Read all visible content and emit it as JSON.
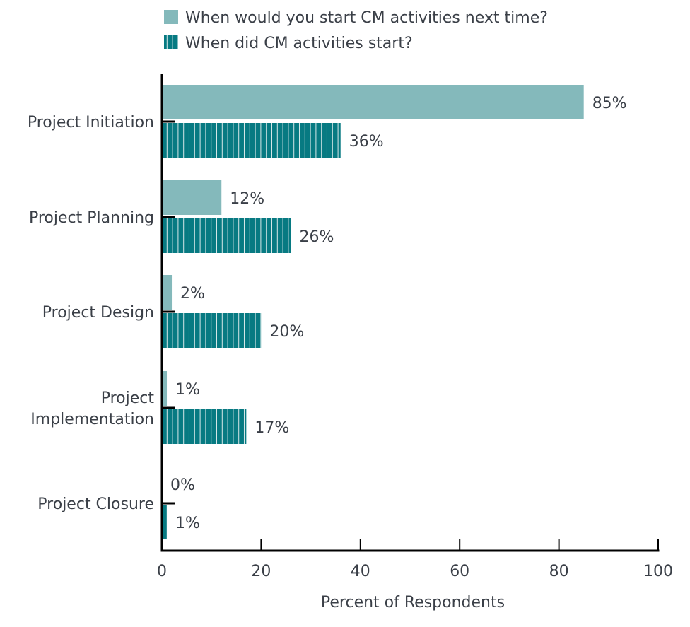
{
  "chart_data": {
    "type": "bar",
    "orientation": "horizontal",
    "categories": [
      "Project Initiation",
      "Project Planning",
      "Project Design",
      "Project Implementation",
      "Project Closure"
    ],
    "series": [
      {
        "name": "When would you start CM activities next time?",
        "values": [
          85,
          12,
          2,
          1,
          0
        ],
        "color": "#84b9bb",
        "pattern": "solid"
      },
      {
        "name": "When did CM activities start?",
        "values": [
          36,
          26,
          20,
          17,
          1
        ],
        "color": "#077a82",
        "pattern": "vertical-stripes"
      }
    ],
    "value_labels": [
      [
        "85%",
        "12%",
        "2%",
        "1%",
        "0%"
      ],
      [
        "36%",
        "26%",
        "20%",
        "17%",
        "1%"
      ]
    ],
    "xlabel": "Percent of Respondents",
    "xlim": [
      0,
      100
    ],
    "xticks": [
      0,
      20,
      40,
      60,
      80,
      100
    ],
    "grid": false,
    "legend_position": "top"
  }
}
